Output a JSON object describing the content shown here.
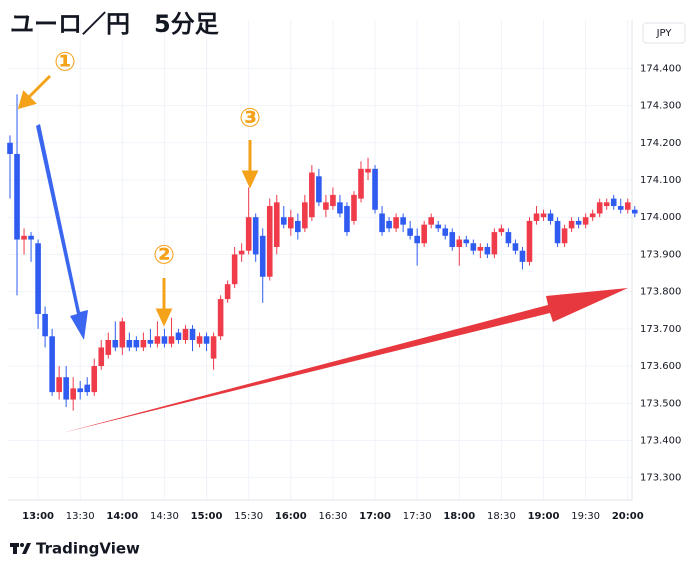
{
  "chart_data": {
    "type": "candlestick",
    "title": "ユーロ／円　5分足",
    "y_axis_unit": "JPY",
    "brand": "TradingView",
    "annotations": [
      "①",
      "②",
      "③"
    ],
    "up_color": "#ef3b4a",
    "down_color": "#2f5bf0",
    "grid": true,
    "ylim": [
      173.24,
      174.53
    ],
    "yticks": [
      {
        "value": 173.3,
        "label": "173.300"
      },
      {
        "value": 173.4,
        "label": "173.400"
      },
      {
        "value": 173.5,
        "label": "173.500"
      },
      {
        "value": 173.6,
        "label": "173.600"
      },
      {
        "value": 173.7,
        "label": "173.700"
      },
      {
        "value": 173.8,
        "label": "173.800"
      },
      {
        "value": 173.9,
        "label": "173.900"
      },
      {
        "value": 174.0,
        "label": "174.000"
      },
      {
        "value": 174.1,
        "label": "174.100"
      },
      {
        "value": 174.2,
        "label": "174.200"
      },
      {
        "value": 174.3,
        "label": "174.300"
      },
      {
        "value": 174.4,
        "label": "174.400"
      }
    ],
    "categories": [
      null,
      null,
      null,
      null,
      "13:00",
      null,
      null,
      null,
      null,
      null,
      "13:30",
      null,
      null,
      null,
      null,
      null,
      "14:00",
      null,
      null,
      null,
      null,
      null,
      "14:30",
      null,
      null,
      null,
      null,
      null,
      "15:00",
      null,
      null,
      null,
      null,
      null,
      "15:30",
      null,
      null,
      null,
      null,
      null,
      "16:00",
      null,
      null,
      null,
      null,
      null,
      "16:30",
      null,
      null,
      null,
      null,
      null,
      "17:00",
      null,
      null,
      null,
      null,
      null,
      "17:30",
      null,
      null,
      null,
      null,
      null,
      "18:00",
      null,
      null,
      null,
      null,
      null,
      "18:30",
      null,
      null,
      null,
      null,
      null,
      "19:00",
      null,
      null,
      null,
      null,
      null,
      "19:30",
      null,
      null,
      null,
      null,
      null,
      "20:00",
      null
    ],
    "open": [
      174.2,
      174.17,
      173.94,
      173.95,
      173.93,
      173.74,
      173.68,
      173.53,
      173.57,
      173.51,
      173.54,
      173.55,
      173.53,
      173.6,
      173.63,
      173.67,
      173.65,
      173.67,
      173.67,
      173.65,
      173.67,
      173.66,
      173.68,
      173.66,
      173.69,
      173.67,
      173.7,
      173.66,
      173.68,
      173.62,
      173.68,
      173.78,
      173.82,
      173.9,
      173.91,
      174.0,
      173.95,
      173.84,
      173.92,
      174.0,
      173.97,
      173.99,
      173.97,
      174.0,
      174.11,
      174.02,
      174.03,
      174.04,
      174.03,
      173.99,
      174.05,
      174.12,
      174.13,
      174.01,
      173.99,
      173.97,
      174.0,
      173.97,
      173.95,
      173.93,
      173.98,
      173.98,
      173.97,
      173.96,
      173.92,
      173.94,
      173.93,
      173.91,
      173.92,
      173.9,
      173.96,
      173.96,
      173.93,
      173.91,
      173.88,
      173.99,
      174.0,
      174.01,
      173.99,
      173.93,
      173.97,
      173.99,
      173.98,
      174.0,
      174.01,
      174.03,
      174.05,
      174.03,
      174.02,
      174.02
    ],
    "high": [
      174.22,
      174.33,
      173.97,
      173.96,
      173.94,
      173.76,
      173.7,
      173.6,
      173.6,
      173.57,
      173.56,
      173.57,
      173.62,
      173.67,
      173.69,
      173.72,
      173.73,
      173.69,
      173.68,
      173.69,
      173.7,
      173.72,
      173.7,
      173.73,
      173.7,
      173.71,
      173.71,
      173.69,
      173.69,
      173.69,
      173.79,
      173.83,
      173.92,
      173.93,
      174.08,
      174.01,
      173.97,
      174.05,
      174.06,
      174.03,
      174.02,
      174.01,
      174.06,
      174.14,
      174.13,
      174.06,
      174.08,
      174.06,
      174.04,
      174.07,
      174.15,
      174.16,
      174.14,
      174.03,
      174.0,
      174.01,
      174.01,
      173.99,
      173.97,
      173.99,
      174.01,
      173.99,
      173.98,
      173.97,
      173.95,
      173.95,
      173.94,
      173.93,
      173.93,
      173.97,
      173.98,
      173.97,
      173.94,
      173.92,
      174.0,
      174.03,
      174.02,
      174.02,
      174.0,
      173.98,
      174.0,
      174.0,
      174.01,
      174.02,
      174.05,
      174.05,
      174.06,
      174.05,
      174.05,
      174.03
    ],
    "low": [
      174.05,
      173.79,
      173.9,
      173.88,
      173.7,
      173.65,
      173.52,
      173.51,
      173.49,
      173.48,
      173.51,
      173.52,
      173.52,
      173.59,
      173.62,
      173.64,
      173.63,
      173.64,
      173.64,
      173.64,
      173.65,
      173.65,
      173.65,
      173.65,
      173.66,
      173.66,
      173.64,
      173.65,
      173.64,
      173.59,
      173.67,
      173.77,
      173.81,
      173.88,
      173.9,
      173.88,
      173.77,
      173.83,
      173.9,
      173.97,
      173.95,
      173.94,
      173.96,
      173.99,
      174.03,
      174.0,
      174.02,
      174.0,
      173.95,
      173.98,
      174.04,
      174.1,
      174.01,
      173.95,
      173.96,
      173.96,
      173.96,
      173.94,
      173.87,
      173.92,
      173.97,
      173.96,
      173.94,
      173.91,
      173.87,
      173.92,
      173.9,
      173.89,
      173.89,
      173.89,
      173.95,
      173.92,
      173.9,
      173.86,
      173.87,
      173.98,
      173.99,
      173.98,
      173.92,
      173.92,
      173.96,
      173.97,
      173.97,
      173.99,
      174.0,
      174.02,
      174.02,
      174.01,
      174.01,
      174.0
    ],
    "close": [
      174.17,
      173.94,
      173.95,
      173.94,
      173.74,
      173.68,
      173.53,
      173.57,
      173.51,
      173.54,
      173.53,
      173.53,
      173.6,
      173.65,
      173.67,
      173.65,
      173.72,
      173.65,
      173.65,
      173.67,
      173.66,
      173.68,
      173.66,
      173.68,
      173.67,
      173.7,
      173.67,
      173.68,
      173.66,
      173.68,
      173.78,
      173.82,
      173.9,
      173.91,
      174.0,
      173.9,
      173.84,
      174.03,
      174.04,
      173.98,
      174.0,
      173.96,
      174.04,
      174.12,
      174.04,
      174.04,
      174.06,
      174.01,
      173.96,
      174.06,
      174.13,
      174.13,
      174.02,
      173.96,
      173.97,
      174.0,
      173.98,
      173.95,
      173.93,
      173.98,
      174.0,
      173.97,
      173.95,
      173.92,
      173.94,
      173.93,
      173.91,
      173.92,
      173.9,
      173.96,
      173.97,
      173.93,
      173.91,
      173.88,
      173.99,
      174.01,
      174.01,
      173.99,
      173.93,
      173.97,
      173.99,
      173.98,
      174.0,
      174.01,
      174.04,
      174.04,
      174.03,
      174.02,
      174.04,
      174.01
    ]
  }
}
